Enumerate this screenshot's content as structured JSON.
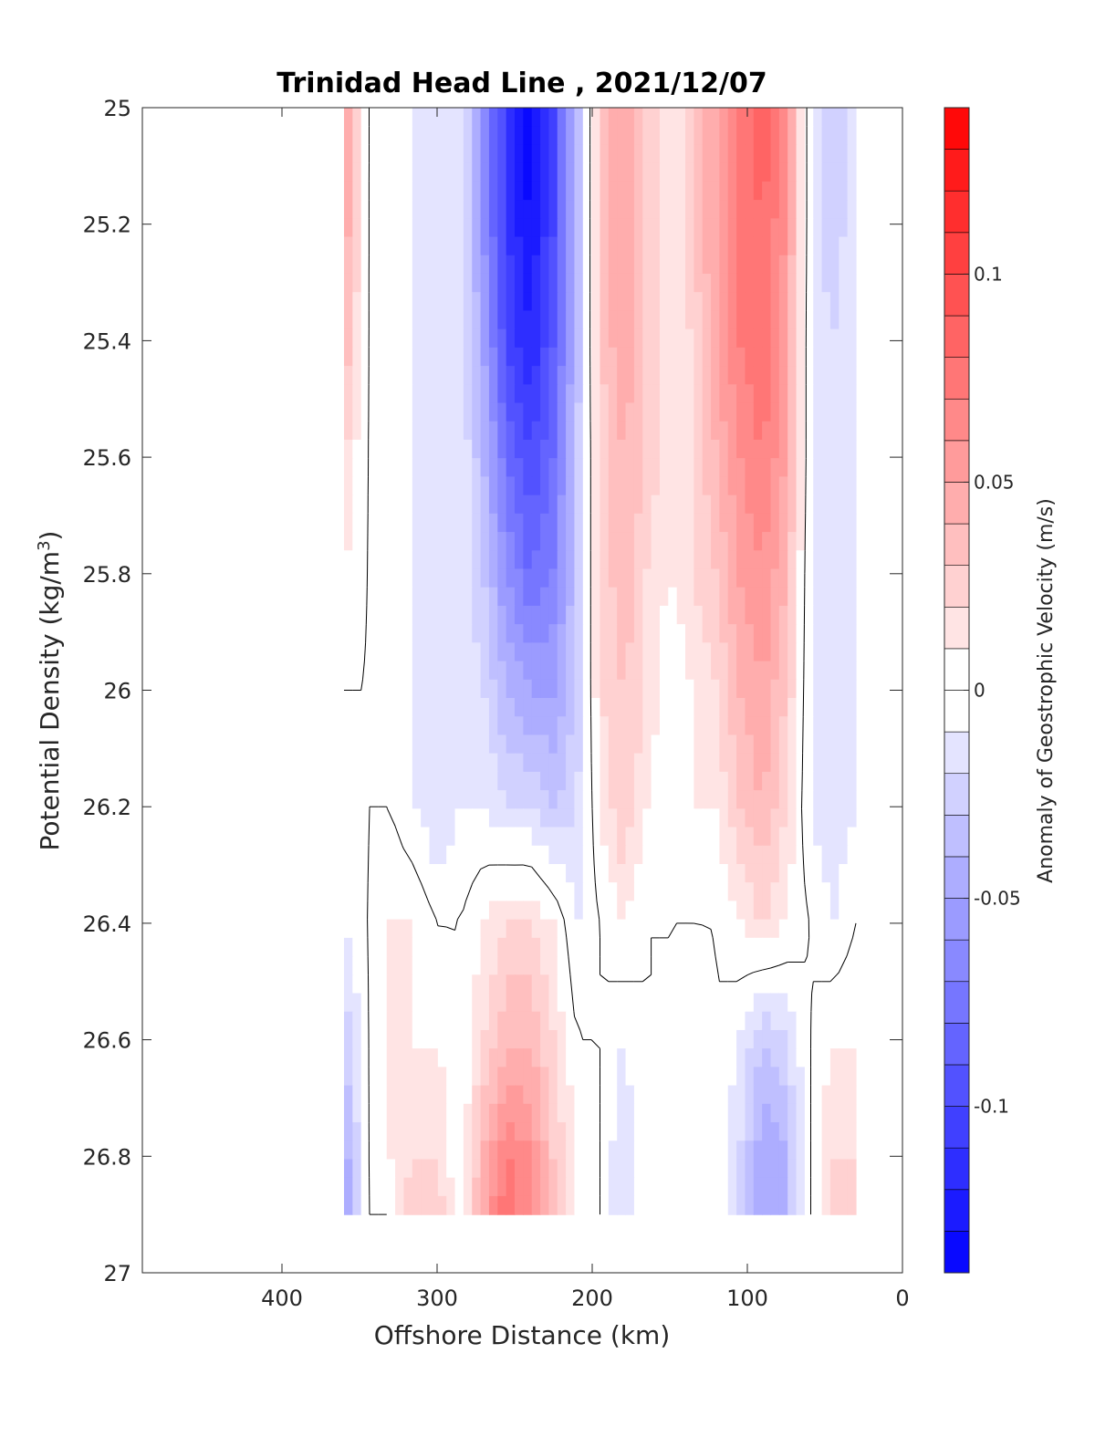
{
  "chart_data": {
    "type": "heatmap",
    "title": "Trinidad Head Line , 2021/12/07",
    "xlabel": "Offshore Distance (km)",
    "ylabel_main": "Potential Density (kg/m",
    "ylabel_sup": "3",
    "ylabel_close": ")",
    "colorbar_label": "Anomaly of Geostrophic Velocity (m/s)",
    "xlim": [
      490,
      0
    ],
    "ylim": [
      25,
      27
    ],
    "x_reversed": true,
    "y_reversed": true,
    "x_ticks": [
      400,
      300,
      200,
      100,
      0
    ],
    "y_ticks": [
      25,
      25.2,
      25.4,
      25.6,
      25.8,
      26,
      26.2,
      26.4,
      26.6,
      26.8,
      27
    ],
    "y_tick_labels": [
      "25",
      "25.2",
      "25.4",
      "25.6",
      "25.8",
      "26",
      "26.2",
      "26.4",
      "26.6",
      "26.8",
      "27"
    ],
    "colorbar_range": [
      -0.14,
      0.14
    ],
    "colorbar_ticks": [
      0.1,
      0.05,
      0,
      -0.05,
      -0.1
    ],
    "colorbar_tick_labels": [
      "0.1",
      "0.05",
      "0",
      "-0.05",
      "-0.1"
    ],
    "colormap": {
      "negative": "#0000ff",
      "zero": "#ffffff",
      "positive": "#ff0000"
    },
    "grid": false,
    "data_extent": {
      "x": [
        360,
        30
      ],
      "y": [
        25,
        26.9
      ]
    },
    "x": [
      360,
      345,
      330,
      315,
      300,
      285,
      270,
      255,
      240,
      225,
      210,
      195,
      180,
      165,
      150,
      135,
      120,
      105,
      90,
      75,
      60,
      45,
      30
    ],
    "y": [
      25.0,
      25.2,
      25.4,
      25.6,
      25.8,
      26.0,
      26.2,
      26.4,
      26.6,
      26.8,
      26.9
    ],
    "z": [
      [
        0.06,
        0.0,
        -0.01,
        -0.01,
        -0.02,
        -0.01,
        -0.06,
        -0.11,
        -0.14,
        -0.1,
        -0.04,
        0.03,
        0.05,
        0.03,
        0.01,
        0.03,
        0.05,
        0.07,
        0.09,
        0.06,
        -0.01,
        -0.03,
        -0.01
      ],
      [
        0.05,
        0.0,
        -0.01,
        -0.01,
        -0.02,
        -0.01,
        -0.06,
        -0.11,
        -0.13,
        -0.1,
        -0.04,
        0.03,
        0.05,
        0.03,
        0.01,
        0.03,
        0.05,
        0.07,
        0.08,
        0.06,
        -0.01,
        -0.03,
        -0.01
      ],
      [
        0.04,
        0.0,
        -0.01,
        -0.01,
        -0.02,
        -0.01,
        -0.05,
        -0.1,
        -0.12,
        -0.09,
        -0.04,
        0.03,
        0.05,
        0.03,
        0.01,
        0.02,
        0.05,
        0.07,
        0.08,
        0.05,
        -0.01,
        -0.02,
        -0.01
      ],
      [
        0.02,
        0.0,
        -0.01,
        -0.01,
        -0.02,
        -0.01,
        -0.04,
        -0.08,
        -0.1,
        -0.08,
        -0.03,
        0.02,
        0.04,
        0.03,
        0.01,
        0.02,
        0.04,
        0.06,
        0.07,
        0.05,
        -0.01,
        -0.02,
        -0.01
      ],
      [
        0.01,
        0.0,
        -0.01,
        -0.01,
        -0.02,
        -0.01,
        -0.03,
        -0.06,
        -0.08,
        -0.07,
        -0.03,
        0.02,
        0.04,
        0.02,
        0.01,
        0.02,
        0.03,
        0.05,
        0.06,
        0.04,
        -0.01,
        -0.02,
        -0.01
      ],
      [
        0.0,
        0.0,
        -0.01,
        -0.01,
        -0.02,
        -0.01,
        -0.02,
        -0.04,
        -0.05,
        -0.05,
        -0.03,
        0.02,
        0.03,
        0.02,
        0.0,
        0.01,
        0.02,
        0.04,
        0.05,
        0.03,
        -0.01,
        -0.02,
        -0.01
      ],
      [
        -0.01,
        0.0,
        0.0,
        -0.01,
        -0.02,
        -0.01,
        -0.01,
        -0.02,
        -0.02,
        -0.03,
        -0.02,
        0.01,
        0.03,
        0.01,
        0.0,
        0.01,
        0.01,
        0.03,
        0.04,
        0.02,
        -0.01,
        -0.02,
        -0.01
      ],
      [
        -0.01,
        0.0,
        0.01,
        0.01,
        0.0,
        0.0,
        0.01,
        0.02,
        0.02,
        0.01,
        -0.01,
        0.0,
        0.01,
        0.0,
        0.0,
        0.0,
        0.0,
        0.01,
        0.02,
        0.01,
        0.0,
        -0.01,
        0.0
      ],
      [
        -0.03,
        0.0,
        0.01,
        0.01,
        0.01,
        0.0,
        0.02,
        0.04,
        0.04,
        0.02,
        0.0,
        0.0,
        -0.01,
        0.0,
        0.0,
        -0.01,
        0.0,
        -0.01,
        -0.03,
        -0.02,
        0.0,
        0.01,
        0.01
      ],
      [
        -0.05,
        0.0,
        0.01,
        0.02,
        0.02,
        0.0,
        0.04,
        0.07,
        0.06,
        0.03,
        0.01,
        0.0,
        -0.02,
        0.0,
        0.0,
        -0.01,
        0.0,
        -0.02,
        -0.05,
        -0.04,
        0.0,
        0.02,
        0.02
      ],
      [
        -0.05,
        0.0,
        0.0,
        0.03,
        0.03,
        0.0,
        0.05,
        0.08,
        0.06,
        0.03,
        0.01,
        0.0,
        -0.02,
        0.0,
        0.0,
        -0.01,
        0.0,
        -0.02,
        -0.05,
        -0.04,
        0.0,
        0.02,
        0.02
      ]
    ]
  }
}
